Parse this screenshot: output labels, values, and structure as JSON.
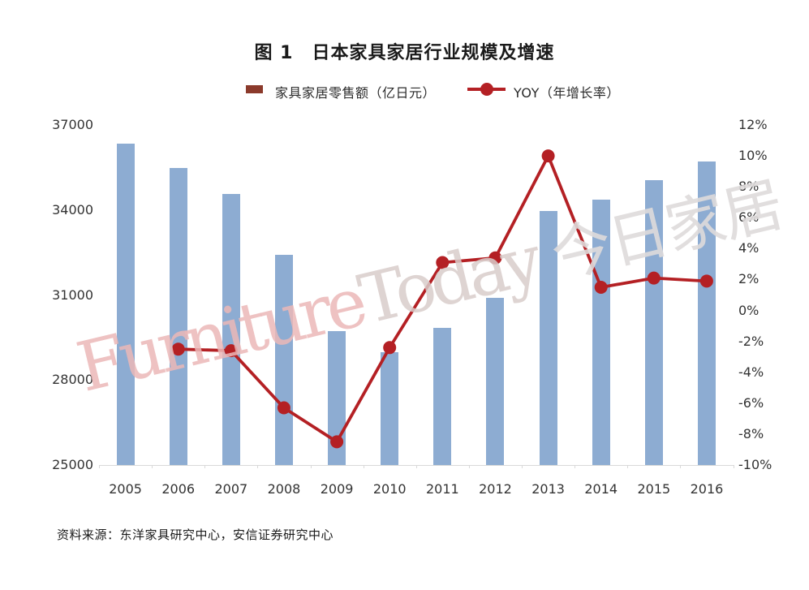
{
  "title": "图 1　日本家具家居行业规模及增速",
  "legend": {
    "bar_label": "家具家居零售额（亿日元）",
    "line_label": "YOY（年增长率）"
  },
  "source": "资料来源：东洋家具研究中心，安信证券研究中心",
  "watermark": {
    "latin_red": "Furniture",
    "latin_gray": "Today",
    "cjk": " 今日家居"
  },
  "colors": {
    "bar": "#8DACD2",
    "line": "#B42024",
    "legend_bar_swatch": "#8B3A2B",
    "axis_text": "#333333",
    "axis_line": "#D9D9D9",
    "title_text": "#1A1A1A"
  },
  "chart_data": {
    "type": "bar+line",
    "title": "图 1　日本家具家居行业规模及增速",
    "categories": [
      "2005",
      "2006",
      "2007",
      "2008",
      "2009",
      "2010",
      "2011",
      "2012",
      "2013",
      "2014",
      "2015",
      "2016"
    ],
    "series": [
      {
        "name": "家具家居零售额（亿日元）",
        "type": "bar",
        "axis": "left",
        "values": [
          36350,
          35480,
          34560,
          32420,
          29720,
          28980,
          29830,
          30910,
          33950,
          34360,
          35060,
          35720
        ]
      },
      {
        "name": "YOY（年增长率）",
        "type": "line",
        "axis": "right",
        "unit": "%",
        "values": [
          null,
          -2.5,
          -2.6,
          -6.3,
          -8.5,
          -2.4,
          3.1,
          3.4,
          10.0,
          1.5,
          2.1,
          1.9
        ]
      }
    ],
    "left_axis": {
      "min": 25000,
      "max": 37000,
      "tick_step": 3000,
      "ticks": [
        "37000",
        "34000",
        "31000",
        "28000",
        "25000"
      ]
    },
    "right_axis": {
      "min": -10,
      "max": 12,
      "tick_step": 2,
      "ticks": [
        "12%",
        "10%",
        "8%",
        "6%",
        "4%",
        "2%",
        "0%",
        "-2%",
        "-4%",
        "-6%",
        "-8%",
        "-10%"
      ]
    },
    "grid": false,
    "legend_position": "top"
  }
}
